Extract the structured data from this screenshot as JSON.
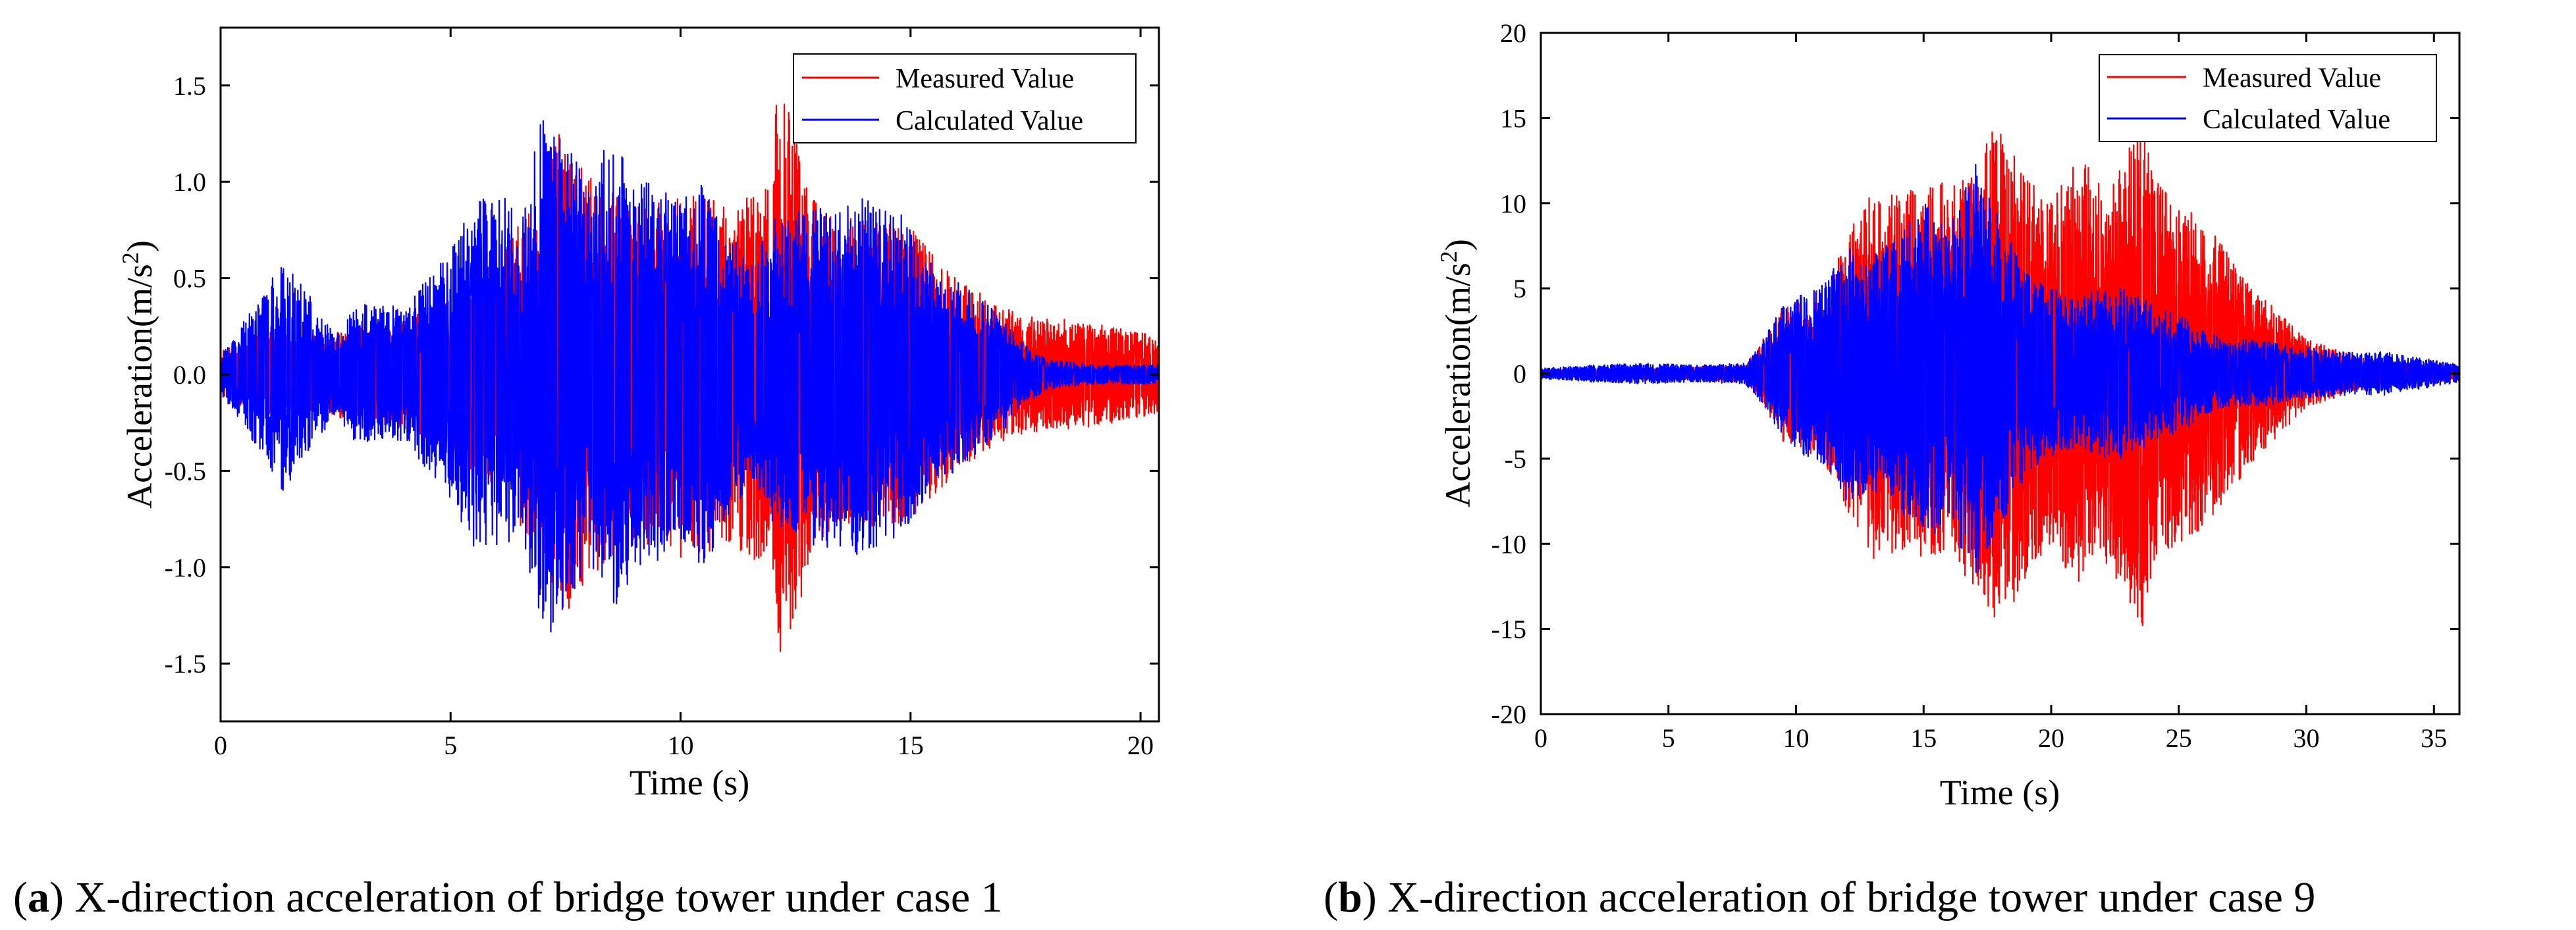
{
  "chart_data": [
    {
      "type": "line",
      "panel_letter": "a",
      "caption": "X-direction acceleration of bridge tower under case 1",
      "xlabel": "Time (s)",
      "ylabel_main": "Acceleration(m/s",
      "ylabel_sup": "2",
      "ylabel_close": ")",
      "xlim": [
        0,
        20.4
      ],
      "ylim": [
        -1.8,
        1.8
      ],
      "xticks": [
        0,
        5,
        10,
        15,
        20
      ],
      "xtick_labels": [
        "0",
        "5",
        "10",
        "15",
        "20"
      ],
      "yticks": [
        -1.5,
        -1.0,
        -0.5,
        0.0,
        0.5,
        1.0,
        1.5
      ],
      "ytick_labels": [
        "-1.5",
        "-1.0",
        "-0.5",
        "0.0",
        "0.5",
        "1.0",
        "1.5"
      ],
      "legend_position": "top-right",
      "series": [
        {
          "name": "Measured Value",
          "color": "#ff0000",
          "envelope": {
            "t": [
              0,
              1,
              2,
              3,
              4,
              5,
              6,
              7,
              7.4,
              8,
              9,
              10,
              11,
              12,
              12.1,
              13,
              14,
              15,
              16,
              17,
              17.5,
              18,
              19,
              20,
              20.4
            ],
            "amp": [
              0.12,
              0.22,
              0.2,
              0.24,
              0.28,
              0.4,
              0.62,
              0.95,
              1.3,
              1.05,
              0.88,
              0.95,
              0.9,
              1.0,
              1.58,
              0.85,
              0.8,
              0.78,
              0.5,
              0.35,
              0.3,
              0.3,
              0.27,
              0.22,
              0.2
            ]
          }
        },
        {
          "name": "Calculated Value",
          "color": "#0000ff",
          "envelope": {
            "t": [
              0,
              1,
              1.3,
              2,
              2.5,
              3,
              4,
              5,
              5.5,
              6,
              6.5,
              7,
              7.2,
              7.5,
              8,
              8.5,
              9,
              10,
              10.5,
              11,
              11.5,
              12,
              13,
              14,
              15,
              15.5,
              16,
              17,
              17.5,
              18,
              19,
              20,
              20.4
            ],
            "amp": [
              0.1,
              0.45,
              0.62,
              0.4,
              0.2,
              0.38,
              0.35,
              0.65,
              0.9,
              1.0,
              0.8,
              1.38,
              1.4,
              1.2,
              1.0,
              1.25,
              1.05,
              0.9,
              1.0,
              0.8,
              0.55,
              0.8,
              0.9,
              0.95,
              0.8,
              0.55,
              0.5,
              0.3,
              0.15,
              0.08,
              0.05,
              0.05,
              0.05
            ]
          }
        }
      ]
    },
    {
      "type": "line",
      "panel_letter": "b",
      "caption": "X-direction acceleration of bridge tower under case 9",
      "xlabel": "Time (s)",
      "ylabel_main": "Acceleration(m/s",
      "ylabel_sup": "2",
      "ylabel_close": ")",
      "xlim": [
        0,
        36
      ],
      "ylim": [
        -20,
        20
      ],
      "xticks": [
        0,
        5,
        10,
        15,
        20,
        25,
        30,
        35
      ],
      "xtick_labels": [
        "0",
        "5",
        "10",
        "15",
        "20",
        "25",
        "30",
        "35"
      ],
      "yticks": [
        -20,
        -15,
        -10,
        -5,
        0,
        5,
        10,
        15,
        20
      ],
      "ytick_labels": [
        "-20",
        "-15",
        "-10",
        "-5",
        "0",
        "5",
        "10",
        "15",
        "20"
      ],
      "legend_position": "top-right",
      "series": [
        {
          "name": "Measured Value",
          "color": "#ff0000",
          "envelope": {
            "t": [
              0,
              4,
              8,
              8.5,
              9.5,
              11,
              12,
              13,
              14,
              15,
              16,
              17,
              18,
              19,
              20,
              21,
              22,
              23,
              23.5,
              24,
              25,
              26,
              27,
              28,
              29,
              30,
              32,
              34,
              36
            ],
            "amp": [
              0.2,
              0.3,
              0.5,
              1.5,
              4.0,
              5.0,
              8.0,
              11.0,
              10.5,
              11.0,
              11.5,
              12.5,
              15.0,
              12.0,
              10.0,
              13.0,
              11.0,
              13.0,
              15.5,
              12.0,
              10.0,
              9.0,
              7.0,
              5.0,
              3.5,
              2.0,
              1.0,
              0.6,
              0.4
            ]
          }
        },
        {
          "name": "Calculated Value",
          "color": "#0000ff",
          "envelope": {
            "t": [
              0,
              2,
              4,
              6,
              8,
              8.5,
              9.5,
              10,
              11,
              12,
              13,
              14,
              15,
              16,
              17,
              18,
              19,
              20,
              21,
              22,
              23,
              24,
              25,
              26,
              27,
              28,
              30,
              32,
              33,
              34,
              35,
              36
            ],
            "amp": [
              0.3,
              0.5,
              0.6,
              0.5,
              0.6,
              1.5,
              4.0,
              4.5,
              5.5,
              7.5,
              7.0,
              8.0,
              10.0,
              9.0,
              12.5,
              9.0,
              6.0,
              5.0,
              4.5,
              5.0,
              5.0,
              4.0,
              3.5,
              2.5,
              2.0,
              2.0,
              1.5,
              1.2,
              1.3,
              1.0,
              0.8,
              0.5
            ]
          }
        }
      ]
    }
  ]
}
